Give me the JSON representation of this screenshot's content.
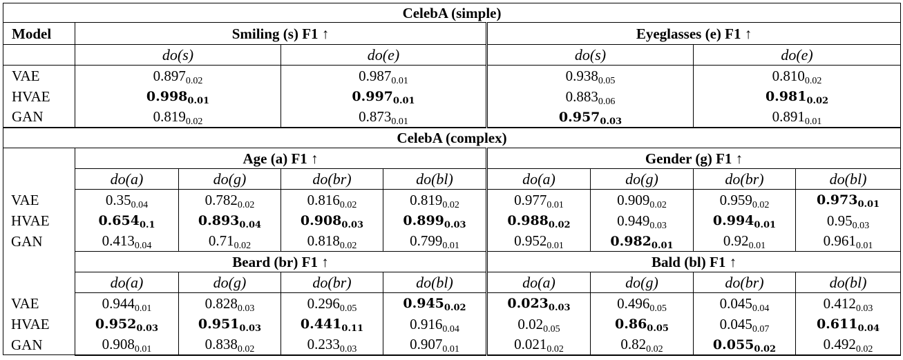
{
  "simple": {
    "title": "CelebA (simple)",
    "model_header": "Model",
    "groups": [
      "Smiling (s) F1 ↑",
      "Eyeglasses (e) F1 ↑"
    ],
    "do_labels": [
      "do(s)",
      "do(e)",
      "do(s)",
      "do(e)"
    ],
    "rows": [
      {
        "model": "VAE",
        "cells": [
          {
            "v": "0.897",
            "s": "0.02",
            "b": false
          },
          {
            "v": "0.987",
            "s": "0.01",
            "b": false
          },
          {
            "v": "0.938",
            "s": "0.05",
            "b": false
          },
          {
            "v": "0.810",
            "s": "0.02",
            "b": false
          }
        ]
      },
      {
        "model": "HVAE",
        "cells": [
          {
            "v": "0.998",
            "s": "0.01",
            "b": true
          },
          {
            "v": "0.997",
            "s": "0.01",
            "b": true
          },
          {
            "v": "0.883",
            "s": "0.06",
            "b": false
          },
          {
            "v": "0.981",
            "s": "0.02",
            "b": true
          }
        ]
      },
      {
        "model": "GAN",
        "cells": [
          {
            "v": "0.819",
            "s": "0.02",
            "b": false
          },
          {
            "v": "0.873",
            "s": "0.01",
            "b": false
          },
          {
            "v": "0.957",
            "s": "0.03",
            "b": true
          },
          {
            "v": "0.891",
            "s": "0.01",
            "b": false
          }
        ]
      }
    ]
  },
  "complex": {
    "title": "CelebA (complex)",
    "blocks": [
      {
        "groups": [
          "Age (a) F1 ↑",
          "Gender (g) F1 ↑"
        ],
        "do_labels": [
          "do(a)",
          "do(g)",
          "do(br)",
          "do(bl)",
          "do(a)",
          "do(g)",
          "do(br)",
          "do(bl)"
        ],
        "rows": [
          {
            "model": "VAE",
            "cells": [
              {
                "v": "0.35",
                "s": "0.04",
                "b": false
              },
              {
                "v": "0.782",
                "s": "0.02",
                "b": false
              },
              {
                "v": "0.816",
                "s": "0.02",
                "b": false
              },
              {
                "v": "0.819",
                "s": "0.02",
                "b": false
              },
              {
                "v": "0.977",
                "s": "0.01",
                "b": false
              },
              {
                "v": "0.909",
                "s": "0.02",
                "b": false
              },
              {
                "v": "0.959",
                "s": "0.02",
                "b": false
              },
              {
                "v": "0.973",
                "s": "0.01",
                "b": true
              }
            ]
          },
          {
            "model": "HVAE",
            "cells": [
              {
                "v": "0.654",
                "s": "0.1",
                "b": true
              },
              {
                "v": "0.893",
                "s": "0.04",
                "b": true
              },
              {
                "v": "0.908",
                "s": "0.03",
                "b": true
              },
              {
                "v": "0.899",
                "s": "0.03",
                "b": true
              },
              {
                "v": "0.988",
                "s": "0.02",
                "b": true
              },
              {
                "v": "0.949",
                "s": "0.03",
                "b": false
              },
              {
                "v": "0.994",
                "s": "0.01",
                "b": true
              },
              {
                "v": "0.95",
                "s": "0.03",
                "b": false
              }
            ]
          },
          {
            "model": "GAN",
            "cells": [
              {
                "v": "0.413",
                "s": "0.04",
                "b": false
              },
              {
                "v": "0.71",
                "s": "0.02",
                "b": false
              },
              {
                "v": "0.818",
                "s": "0.02",
                "b": false
              },
              {
                "v": "0.799",
                "s": "0.01",
                "b": false
              },
              {
                "v": "0.952",
                "s": "0.01",
                "b": false
              },
              {
                "v": "0.982",
                "s": "0.01",
                "b": true
              },
              {
                "v": "0.92",
                "s": "0.01",
                "b": false
              },
              {
                "v": "0.961",
                "s": "0.01",
                "b": false
              }
            ]
          }
        ]
      },
      {
        "groups": [
          "Beard (br) F1 ↑",
          "Bald (bl) F1 ↑"
        ],
        "do_labels": [
          "do(a)",
          "do(g)",
          "do(br)",
          "do(bl)",
          "do(a)",
          "do(g)",
          "do(br)",
          "do(bl)"
        ],
        "rows": [
          {
            "model": "VAE",
            "cells": [
              {
                "v": "0.944",
                "s": "0.01",
                "b": false
              },
              {
                "v": "0.828",
                "s": "0.03",
                "b": false
              },
              {
                "v": "0.296",
                "s": "0.05",
                "b": false
              },
              {
                "v": "0.945",
                "s": "0.02",
                "b": true
              },
              {
                "v": "0.023",
                "s": "0.03",
                "b": true
              },
              {
                "v": "0.496",
                "s": "0.05",
                "b": false
              },
              {
                "v": "0.045",
                "s": "0.04",
                "b": false
              },
              {
                "v": "0.412",
                "s": "0.03",
                "b": false
              }
            ]
          },
          {
            "model": "HVAE",
            "cells": [
              {
                "v": "0.952",
                "s": "0.03",
                "b": true
              },
              {
                "v": "0.951",
                "s": "0.03",
                "b": true
              },
              {
                "v": "0.441",
                "s": "0.11",
                "b": true
              },
              {
                "v": "0.916",
                "s": "0.04",
                "b": false
              },
              {
                "v": "0.02",
                "s": "0.05",
                "b": false
              },
              {
                "v": "0.86",
                "s": "0.05",
                "b": true
              },
              {
                "v": "0.045",
                "s": "0.07",
                "b": false
              },
              {
                "v": "0.611",
                "s": "0.04",
                "b": true
              }
            ]
          },
          {
            "model": "GAN",
            "cells": [
              {
                "v": "0.908",
                "s": "0.01",
                "b": false
              },
              {
                "v": "0.838",
                "s": "0.02",
                "b": false
              },
              {
                "v": "0.233",
                "s": "0.03",
                "b": false
              },
              {
                "v": "0.907",
                "s": "0.01",
                "b": false
              },
              {
                "v": "0.021",
                "s": "0.02",
                "b": false
              },
              {
                "v": "0.82",
                "s": "0.02",
                "b": false
              },
              {
                "v": "0.055",
                "s": "0.02",
                "b": true
              },
              {
                "v": "0.492",
                "s": "0.02",
                "b": false
              }
            ]
          }
        ]
      }
    ]
  }
}
